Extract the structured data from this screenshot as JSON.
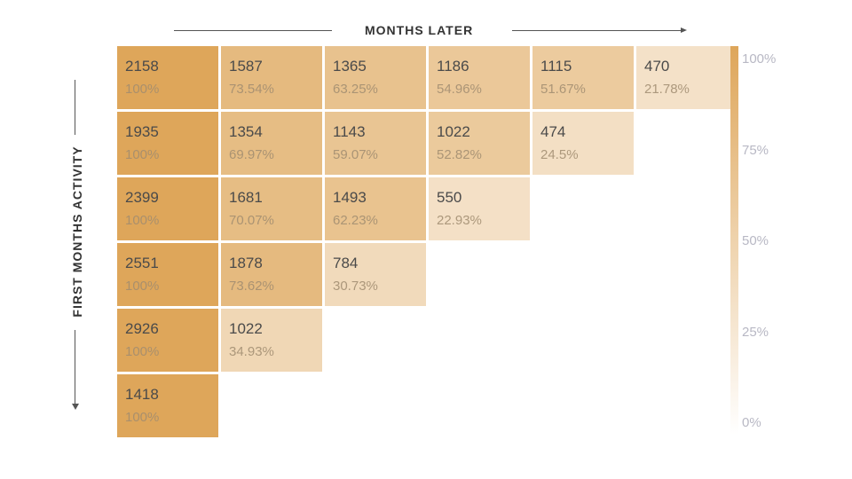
{
  "chart_data": {
    "type": "heatmap",
    "xlabel": "MONTHS LATER",
    "ylabel": "FIRST MONTHS ACTIVITY",
    "rows": [
      {
        "counts": [
          2158,
          1587,
          1365,
          1186,
          1115,
          470
        ],
        "percents": [
          "100%",
          "73.54%",
          "63.25%",
          "54.96%",
          "51.67%",
          "21.78%"
        ]
      },
      {
        "counts": [
          1935,
          1354,
          1143,
          1022,
          474
        ],
        "percents": [
          "100%",
          "69.97%",
          "59.07%",
          "52.82%",
          "24.5%"
        ]
      },
      {
        "counts": [
          2399,
          1681,
          1493,
          550
        ],
        "percents": [
          "100%",
          "70.07%",
          "62.23%",
          "22.93%"
        ]
      },
      {
        "counts": [
          2551,
          1878,
          784
        ],
        "percents": [
          "100%",
          "73.62%",
          "30.73%"
        ]
      },
      {
        "counts": [
          2926,
          1022
        ],
        "percents": [
          "100%",
          "34.93%"
        ]
      },
      {
        "counts": [
          1418
        ],
        "percents": [
          "100%"
        ]
      }
    ],
    "legend": {
      "ticks": [
        "100%",
        "75%",
        "50%",
        "25%",
        "0%"
      ],
      "tick_values": [
        100,
        75,
        50,
        25,
        0
      ],
      "placement": "right"
    },
    "colors": {
      "high": "#dea65a",
      "low": "#ffffff"
    }
  }
}
